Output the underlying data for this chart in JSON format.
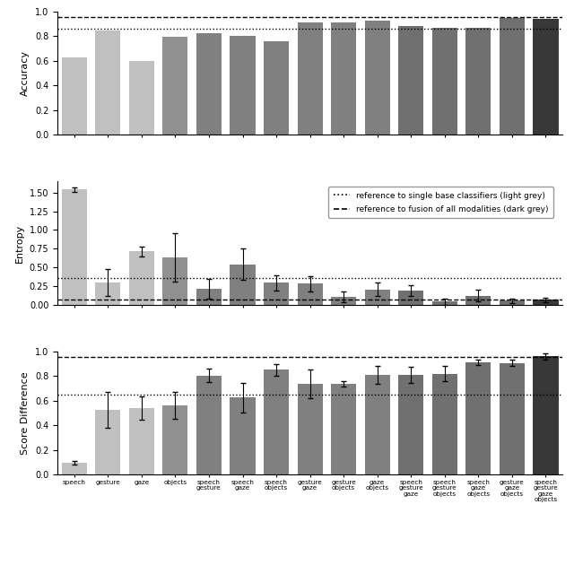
{
  "categories": [
    "speech",
    "gesture",
    "gaze",
    "objects",
    "speech\ngesture",
    "speech\ngaze",
    "speech\nobjects",
    "gesture\ngaze",
    "gesture\nobjects",
    "gaze\nobjects",
    "speech\ngesture\ngaze",
    "speech\ngesture\nobjects",
    "speech\ngaze\nobjects",
    "gesture\ngaze\nobjects",
    "speech\ngesture\ngaze\nobjects"
  ],
  "colors": [
    "#c0c0c0",
    "#c0c0c0",
    "#c0c0c0",
    "#909090",
    "#808080",
    "#808080",
    "#808080",
    "#808080",
    "#808080",
    "#808080",
    "#707070",
    "#707070",
    "#707070",
    "#707070",
    "#383838"
  ],
  "accuracy": [
    0.625,
    0.845,
    0.598,
    0.79,
    0.82,
    0.8,
    0.758,
    0.91,
    0.91,
    0.925,
    0.878,
    0.868,
    0.868,
    0.945,
    0.942
  ],
  "accuracy_ref_dotted": 0.862,
  "accuracy_ref_dashed": 0.95,
  "entropy": [
    1.54,
    0.3,
    0.71,
    0.63,
    0.21,
    0.54,
    0.29,
    0.28,
    0.1,
    0.2,
    0.19,
    0.04,
    0.12,
    0.05,
    0.065
  ],
  "entropy_err": [
    0.03,
    0.18,
    0.07,
    0.32,
    0.13,
    0.21,
    0.1,
    0.1,
    0.07,
    0.09,
    0.07,
    0.04,
    0.08,
    0.03,
    0.03
  ],
  "entropy_ref_dotted": 0.355,
  "entropy_ref_dashed": 0.065,
  "score_diff": [
    0.095,
    0.525,
    0.54,
    0.56,
    0.805,
    0.625,
    0.85,
    0.735,
    0.735,
    0.81,
    0.808,
    0.82,
    0.91,
    0.905,
    0.96
  ],
  "score_diff_err": [
    0.015,
    0.145,
    0.095,
    0.11,
    0.055,
    0.12,
    0.05,
    0.115,
    0.02,
    0.075,
    0.065,
    0.065,
    0.02,
    0.025,
    0.025
  ],
  "score_diff_ref_dotted": 0.65,
  "score_diff_ref_dashed": 0.955,
  "legend_dotted": "reference to single base classifiers (light grey)",
  "legend_dashed": "reference to fusion of all modalities (dark grey)"
}
